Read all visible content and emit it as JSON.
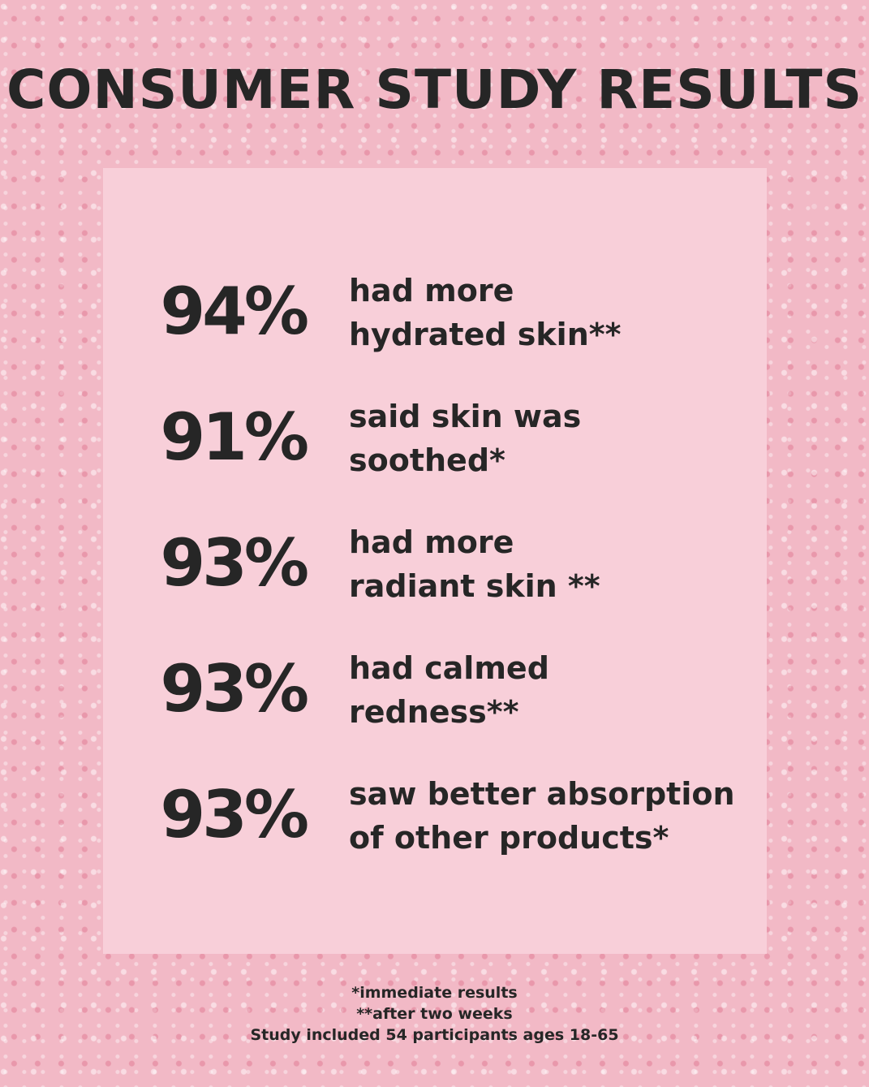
{
  "title": "CONSUMER STUDY RESULTS",
  "stats": [
    {
      "percent": "94%",
      "line1": "had more",
      "line2": "hydrated skin**"
    },
    {
      "percent": "91%",
      "line1": "said skin was",
      "line2": "soothed*"
    },
    {
      "percent": "93%",
      "line1": "had more",
      "line2": "radiant skin **"
    },
    {
      "percent": "93%",
      "line1": "had calmed",
      "line2": "redness**"
    },
    {
      "percent": "93%",
      "line1": "saw better absorption",
      "line2": "of other products*"
    }
  ],
  "footnotes": [
    "*immediate results",
    "**after two weeks",
    "Study included 54 participants ages 18-65"
  ],
  "colors": {
    "background": "#f2b9c6",
    "panel": "#f8cfd9",
    "text": "#262626"
  }
}
